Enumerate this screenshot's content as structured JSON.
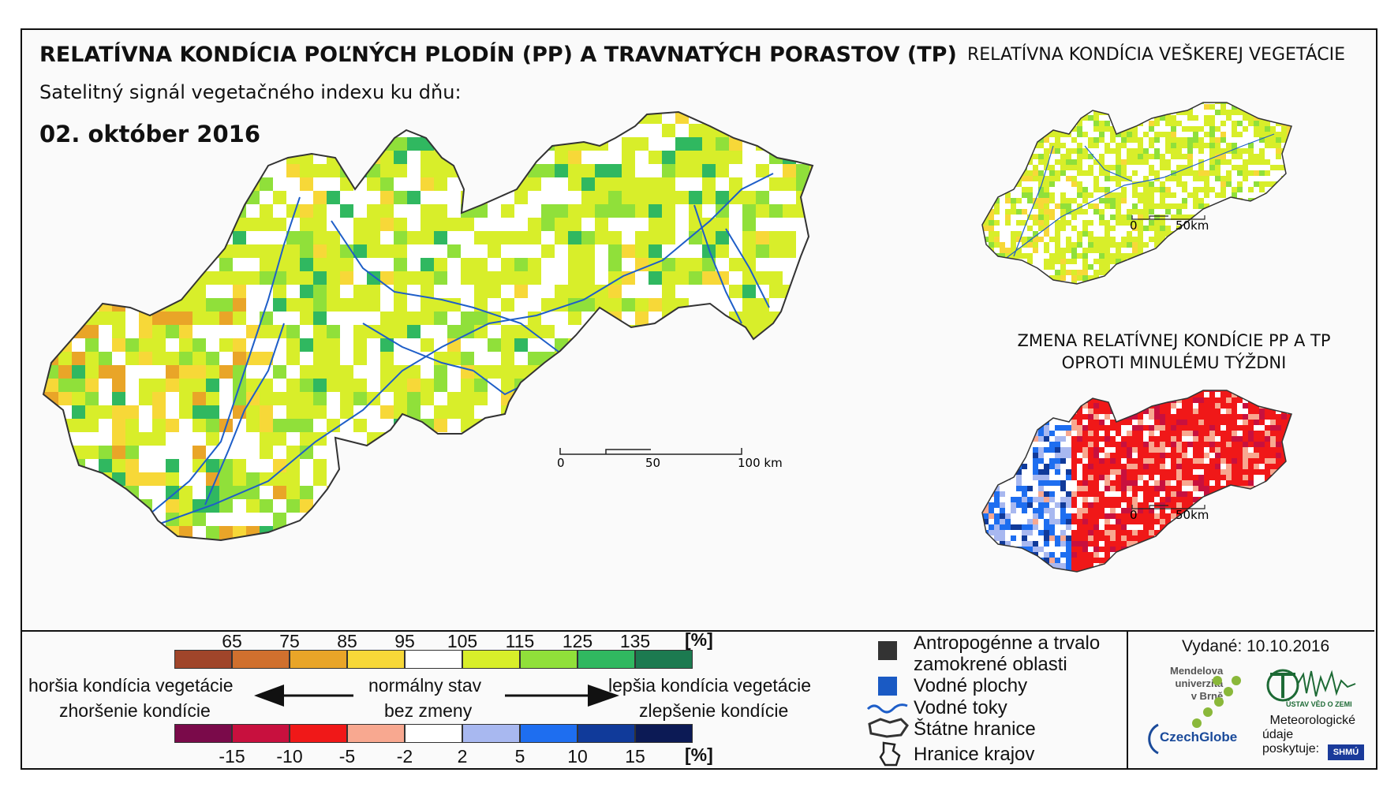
{
  "title": "RELATÍVNA KONDÍCIA POĽNÝCH PLODÍN (PP) A TRAVNATÝCH PORASTOV (TP)",
  "title_right": "RELATÍVNA KONDÍCIA VEŠKEREJ VEGETÁCIE",
  "subtitle": "Satelitný signál vegetačného indexu ku dňu:",
  "date": "02. október 2016",
  "change_title_1": "ZMENA RELATÍVNEJ KONDÍCIE PP A TP",
  "change_title_2": "OPROTI MINULÉMU TÝŽDNI",
  "main_scale": {
    "l0": "0",
    "l1": "50",
    "l2": "100 km"
  },
  "small_scale_1": {
    "l0": "0",
    "l1": "50km"
  },
  "small_scale_2": {
    "l0": "0",
    "l1": "50km"
  },
  "condition_legend": {
    "unit": "[%]",
    "ticks": [
      "65",
      "75",
      "85",
      "95",
      "105",
      "115",
      "125",
      "135"
    ],
    "colors": [
      "#a0452a",
      "#d0702e",
      "#e9a528",
      "#f7d838",
      "#ffffff",
      "#d8ee2a",
      "#90e03a",
      "#30b860",
      "#1c7a50"
    ]
  },
  "change_legend": {
    "unit": "[%]",
    "ticks": [
      "-15",
      "-10",
      "-5",
      "-2",
      "2",
      "5",
      "10",
      "15"
    ],
    "colors": [
      "#7a0a4a",
      "#c8103e",
      "#f01818",
      "#f8a890",
      "#ffffff",
      "#a8b8f0",
      "#1e6ef0",
      "#103a9a",
      "#0c1a55"
    ]
  },
  "labels": {
    "worse": "horšia kondícia vegetácie",
    "worse_change": "zhoršenie kondície",
    "normal": "normálny stav",
    "no_change": "bez zmeny",
    "better": "lepšia kondícia vegetácie",
    "better_change": "zlepšenie kondície"
  },
  "map_legend": {
    "anthropogenic_1": "Antropogénne a trvalo",
    "anthropogenic_2": "zamokrené oblasti",
    "water_bodies": "Vodné plochy",
    "rivers": "Vodné toky",
    "state_borders": "Štátne hranice",
    "region_borders": "Hranice krajov"
  },
  "issued": "Vydané: 10.10.2016",
  "logos": {
    "mendel_1": "Mendelova",
    "mendel_2": "univerzita",
    "mendel_3": "v Brně",
    "ustav": "ÚSTAV VĚD O ZEMI",
    "czechglobe": "CzechGlobe",
    "meteo_1": "Meteorologické",
    "meteo_2": "údaje",
    "meteo_3": "poskytuje:",
    "shmu": "SHMÚ"
  }
}
